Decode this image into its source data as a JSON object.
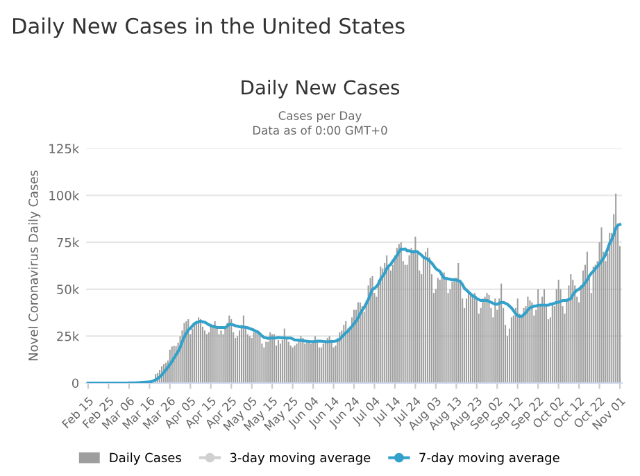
{
  "chart_data": {
    "type": "bar",
    "title": "Daily New Cases",
    "subtitle": "Cases per Day\nData as of 0:00 GMT+0",
    "ylabel": "Novel Coronavirus Daily Cases",
    "annotations": [
      "Daily New Cases in the United States"
    ],
    "categories": [
      "Feb 15",
      null,
      null,
      null,
      null,
      null,
      null,
      null,
      null,
      null,
      "Feb 25",
      null,
      null,
      null,
      null,
      null,
      null,
      null,
      null,
      null,
      "Mar 06",
      null,
      null,
      null,
      null,
      null,
      null,
      null,
      null,
      null,
      "Mar 16",
      null,
      null,
      null,
      null,
      null,
      null,
      null,
      null,
      null,
      "Mar 26",
      null,
      null,
      null,
      null,
      null,
      null,
      null,
      null,
      null,
      "Apr 05",
      null,
      null,
      null,
      null,
      null,
      null,
      null,
      null,
      null,
      "Apr 15",
      null,
      null,
      null,
      null,
      null,
      null,
      null,
      null,
      null,
      "Apr 25",
      null,
      null,
      null,
      null,
      null,
      null,
      null,
      null,
      null,
      "May 05",
      null,
      null,
      null,
      null,
      null,
      null,
      null,
      null,
      null,
      "May 15",
      null,
      null,
      null,
      null,
      null,
      null,
      null,
      null,
      null,
      "May 25",
      null,
      null,
      null,
      null,
      null,
      null,
      null,
      null,
      null,
      "Jun 04",
      null,
      null,
      null,
      null,
      null,
      null,
      null,
      null,
      null,
      "Jun 14",
      null,
      null,
      null,
      null,
      null,
      null,
      null,
      null,
      null,
      "Jun 24",
      null,
      null,
      null,
      null,
      null,
      null,
      null,
      null,
      null,
      "Jul 04",
      null,
      null,
      null,
      null,
      null,
      null,
      null,
      null,
      null,
      "Jul 14",
      null,
      null,
      null,
      null,
      null,
      null,
      null,
      null,
      null,
      "Jul 24",
      null,
      null,
      null,
      null,
      null,
      null,
      null,
      null,
      null,
      "Aug 03",
      null,
      null,
      null,
      null,
      null,
      null,
      null,
      null,
      null,
      "Aug 13",
      null,
      null,
      null,
      null,
      null,
      null,
      null,
      null,
      null,
      "Aug 23",
      null,
      null,
      null,
      null,
      null,
      null,
      null,
      null,
      null,
      "Sep 02",
      null,
      null,
      null,
      null,
      null,
      null,
      null,
      null,
      null,
      "Sep 12",
      null,
      null,
      null,
      null,
      null,
      null,
      null,
      null,
      null,
      "Sep 22",
      null,
      null,
      null,
      null,
      null,
      null,
      null,
      null,
      null,
      "Oct 02",
      null,
      null,
      null,
      null,
      null,
      null,
      null,
      null,
      null,
      "Oct 12",
      null,
      null,
      null,
      null,
      null,
      null,
      null,
      null,
      null,
      "Oct 22",
      null,
      null,
      null,
      null,
      null,
      null,
      null,
      null,
      null,
      "Nov 01"
    ],
    "series": [
      {
        "name": "Daily Cases",
        "color": "#9e9e9e",
        "values": [
          0,
          0,
          0,
          0,
          0,
          0,
          0,
          0,
          0,
          0,
          0,
          0,
          0,
          0,
          0,
          0,
          0,
          0,
          0,
          0,
          0,
          null,
          null,
          null,
          null,
          null,
          null,
          null,
          null,
          null,
          null,
          null,
          null,
          4800,
          5400,
          7000,
          8900,
          10000,
          10800,
          12000,
          17800,
          19500,
          19800,
          19600,
          21500,
          25000,
          28000,
          32000,
          33000,
          34000,
          26000,
          29000,
          32000,
          33000,
          35000,
          34000,
          30000,
          28000,
          26000,
          27000,
          30000,
          31000,
          33000,
          29000,
          26000,
          28000,
          26000,
          30000,
          32000,
          36000,
          34000,
          27000,
          24000,
          25000,
          28000,
          31000,
          36000,
          30000,
          26000,
          25000,
          24000,
          27000,
          28000,
          27000,
          26000,
          21000,
          19000,
          22000,
          22000,
          27000,
          26000,
          26000,
          20000,
          23000,
          21000,
          23000,
          29000,
          24000,
          22000,
          20000,
          19000,
          20000,
          21000,
          23000,
          25000,
          24000,
          21000,
          22000,
          22000,
          21000,
          22000,
          25000,
          23000,
          19000,
          19000,
          21000,
          22000,
          24000,
          25000,
          23000,
          19000,
          20000,
          24000,
          27000,
          28000,
          31000,
          33000,
          29000,
          30000,
          35000,
          39000,
          39000,
          43000,
          43000,
          41000,
          38000,
          44000,
          52000,
          56000,
          57000,
          48000,
          46000,
          55000,
          62000,
          61000,
          64000,
          68000,
          63000,
          60000,
          63000,
          68000,
          72000,
          74000,
          75000,
          65000,
          63000,
          63000,
          68000,
          72000,
          71000,
          78000,
          70000,
          60000,
          58000,
          67000,
          70000,
          72000,
          67000,
          58000,
          48000,
          50000,
          56000,
          55000,
          59000,
          59000,
          55000,
          48000,
          50000,
          54000,
          56000,
          56000,
          64000,
          55000,
          45000,
          40000,
          45000,
          48000,
          47000,
          46000,
          48000,
          44000,
          37000,
          40000,
          45000,
          46000,
          48000,
          47000,
          40000,
          35000,
          45000,
          39000,
          45000,
          53000,
          40000,
          31000,
          25000,
          29000,
          35000,
          36000,
          40000,
          45000,
          37000,
          36000,
          40000,
          41000,
          46000,
          44000,
          43000,
          36000,
          39000,
          50000,
          41000,
          46000,
          50000,
          41000,
          34000,
          35000,
          43000,
          41000,
          50000,
          55000,
          50000,
          41000,
          37000,
          45000,
          52000,
          58000,
          55000,
          52000,
          46000,
          43000,
          52000,
          60000,
          63000,
          70000,
          56000,
          48000,
          62000,
          63000,
          65000,
          75000,
          83000,
          70000,
          65000,
          69000,
          80000,
          80000,
          90000,
          101000,
          85000,
          73000
        ]
      },
      {
        "name": "3-day moving average",
        "type": "line",
        "color": "#d0d0d0",
        "values": [
          null,
          null,
          null,
          null,
          null,
          null,
          null,
          null,
          null,
          null,
          null,
          null,
          null,
          null,
          null,
          null,
          null,
          null,
          null,
          null,
          null,
          null,
          null,
          null,
          null,
          null,
          null,
          null,
          null,
          null,
          null,
          null,
          null,
          null,
          null,
          null,
          null,
          null,
          null,
          null,
          null,
          null,
          null,
          null,
          null,
          null,
          null,
          null,
          null,
          null,
          null,
          null,
          null,
          null,
          null,
          null,
          null,
          null,
          null,
          null,
          null,
          null,
          null,
          null,
          null,
          null,
          null,
          null,
          null,
          null,
          null,
          null,
          null,
          null,
          null,
          null,
          null,
          null,
          null,
          null,
          null,
          null,
          null,
          null,
          null,
          null,
          null,
          null,
          null,
          null,
          null,
          null,
          null,
          null,
          null,
          null,
          null,
          null,
          null,
          null,
          null,
          null,
          null,
          null,
          null,
          null,
          null,
          null,
          null,
          null,
          null,
          null,
          null,
          null,
          null,
          null,
          null,
          null,
          null,
          null,
          null,
          null,
          null,
          null,
          null,
          null,
          null,
          null,
          null,
          null,
          null,
          null,
          null,
          null,
          null,
          null,
          null,
          null,
          null,
          null,
          null,
          null,
          null,
          null,
          null,
          null,
          null,
          null,
          null,
          null,
          null,
          null,
          null,
          null,
          null,
          null,
          null,
          null,
          null,
          null,
          null,
          null,
          null,
          null,
          null,
          null,
          null,
          null,
          null,
          null,
          null,
          null,
          null,
          null,
          null,
          null,
          null,
          null,
          null,
          null,
          null,
          null,
          null,
          null,
          null,
          null,
          null,
          null,
          null,
          null,
          null,
          null,
          null,
          null,
          null,
          null,
          null,
          null,
          null,
          null,
          null,
          null,
          null,
          null,
          null,
          null,
          null,
          null,
          null,
          null,
          null,
          null,
          null,
          null,
          null,
          null,
          null,
          null,
          null,
          null,
          null,
          null,
          null,
          null,
          null,
          null,
          null,
          null,
          null,
          null,
          null,
          null,
          null,
          null,
          null,
          null,
          null,
          null,
          null,
          null,
          null,
          null,
          null,
          null,
          null,
          null,
          null,
          null,
          null,
          null,
          null,
          null,
          null,
          null,
          null,
          null,
          null,
          null,
          null,
          null,
          null
        ]
      },
      {
        "name": "7-day moving average",
        "type": "line",
        "color": "#33a1c9",
        "values": [
          0,
          0,
          0,
          0,
          0,
          0,
          0,
          0,
          0,
          0,
          0,
          0,
          0,
          0,
          0,
          0,
          0,
          0,
          0,
          0,
          100,
          100,
          100,
          100,
          200,
          200,
          300,
          300,
          400,
          500,
          600,
          800,
          1200,
          1700,
          2400,
          3200,
          4200,
          5500,
          6900,
          8300,
          10000,
          11500,
          13400,
          15100,
          16800,
          18900,
          22000,
          24500,
          26500,
          28300,
          29200,
          30500,
          31600,
          32300,
          32500,
          33000,
          32600,
          32400,
          31800,
          31100,
          30600,
          30200,
          30000,
          29600,
          29600,
          29600,
          29600,
          29500,
          30300,
          31400,
          31200,
          31000,
          30500,
          30300,
          30000,
          29900,
          29800,
          29700,
          29500,
          29000,
          28700,
          28200,
          27600,
          27200,
          26200,
          25100,
          24300,
          24100,
          23800,
          24000,
          24000,
          24000,
          24100,
          24300,
          24200,
          24100,
          24100,
          24000,
          24000,
          24000,
          23500,
          23000,
          22900,
          22800,
          22700,
          22600,
          22400,
          22300,
          22200,
          22100,
          22100,
          22200,
          22300,
          22300,
          22300,
          22200,
          22100,
          22000,
          22100,
          22200,
          22200,
          22400,
          22700,
          23300,
          24600,
          25700,
          26800,
          27500,
          29000,
          30200,
          31600,
          33000,
          34800,
          37000,
          38800,
          40300,
          42300,
          44500,
          47200,
          49900,
          50500,
          51500,
          53000,
          55400,
          57000,
          58500,
          61000,
          62400,
          63300,
          65000,
          66500,
          68000,
          70000,
          71500,
          71200,
          71500,
          70500,
          70500,
          70000,
          69800,
          70200,
          70000,
          69000,
          68200,
          67000,
          66500,
          66000,
          65000,
          64000,
          62500,
          61000,
          60200,
          59500,
          57500,
          56000,
          55800,
          55500,
          55300,
          55000,
          55000,
          55000,
          54500,
          54000,
          52500,
          50500,
          49500,
          48500,
          47500,
          46500,
          46000,
          45000,
          44500,
          44000,
          44000,
          44000,
          44000,
          43500,
          43000,
          42500,
          42000,
          42000,
          42500,
          43000,
          43000,
          42500,
          42000,
          41000,
          40000,
          38500,
          37000,
          36000,
          35500,
          35500,
          36500,
          37500,
          39000,
          40000,
          40500,
          41000,
          41000,
          41500,
          41500,
          41500,
          41500,
          41500,
          41500,
          42000,
          42000,
          42500,
          43000,
          43000,
          43500,
          44000,
          44000,
          44000,
          44500,
          45000,
          47000,
          48500,
          49500,
          50000,
          51000,
          52000,
          53500,
          55000,
          57000,
          58500,
          59500,
          61000,
          62000,
          63500,
          65000,
          66500,
          68500,
          71500,
          74500,
          76500,
          79000,
          82500,
          84000,
          84500
        ]
      }
    ],
    "ylim": [
      0,
      125000
    ],
    "yticks": [
      {
        "value": 0,
        "label": "0"
      },
      {
        "value": 25000,
        "label": "25k"
      },
      {
        "value": 50000,
        "label": "50k"
      },
      {
        "value": 75000,
        "label": "75k"
      },
      {
        "value": 100000,
        "label": "100k"
      },
      {
        "value": 125000,
        "label": "125k"
      }
    ],
    "grid": "y",
    "legend": "bottom"
  }
}
